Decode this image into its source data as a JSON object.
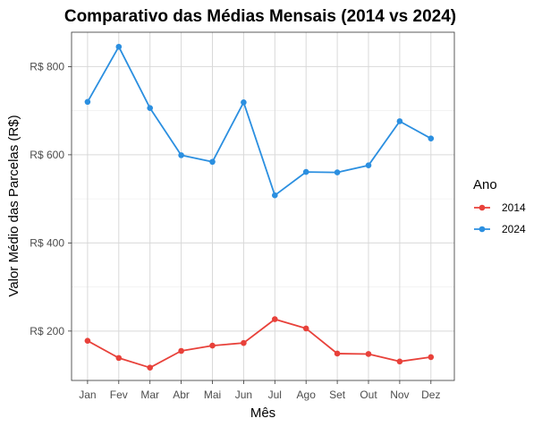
{
  "chart_data": {
    "type": "line",
    "title": "Comparativo das Médias Mensais (2014 vs 2024)",
    "xlabel": "Mês",
    "ylabel": "Valor Médio das Parcelas (R$)",
    "categories": [
      "Jan",
      "Fev",
      "Mar",
      "Abr",
      "Mai",
      "Jun",
      "Jul",
      "Ago",
      "Set",
      "Out",
      "Nov",
      "Dez"
    ],
    "y_ticks": [
      200,
      400,
      600,
      800
    ],
    "y_tick_labels": [
      "R$ 200",
      "R$ 400",
      "R$ 600",
      "R$ 800"
    ],
    "ylim": [
      88,
      878
    ],
    "grid": true,
    "legend": {
      "title": "Ano",
      "position": "right"
    },
    "series": [
      {
        "name": "2014",
        "color": "#e8413a",
        "values": [
          178,
          139,
          117,
          155,
          167,
          173,
          227,
          206,
          149,
          148,
          131,
          141
        ]
      },
      {
        "name": "2024",
        "color": "#2b8fe0",
        "values": [
          720,
          845,
          706,
          599,
          584,
          719,
          508,
          561,
          560,
          576,
          676,
          637
        ]
      }
    ]
  }
}
